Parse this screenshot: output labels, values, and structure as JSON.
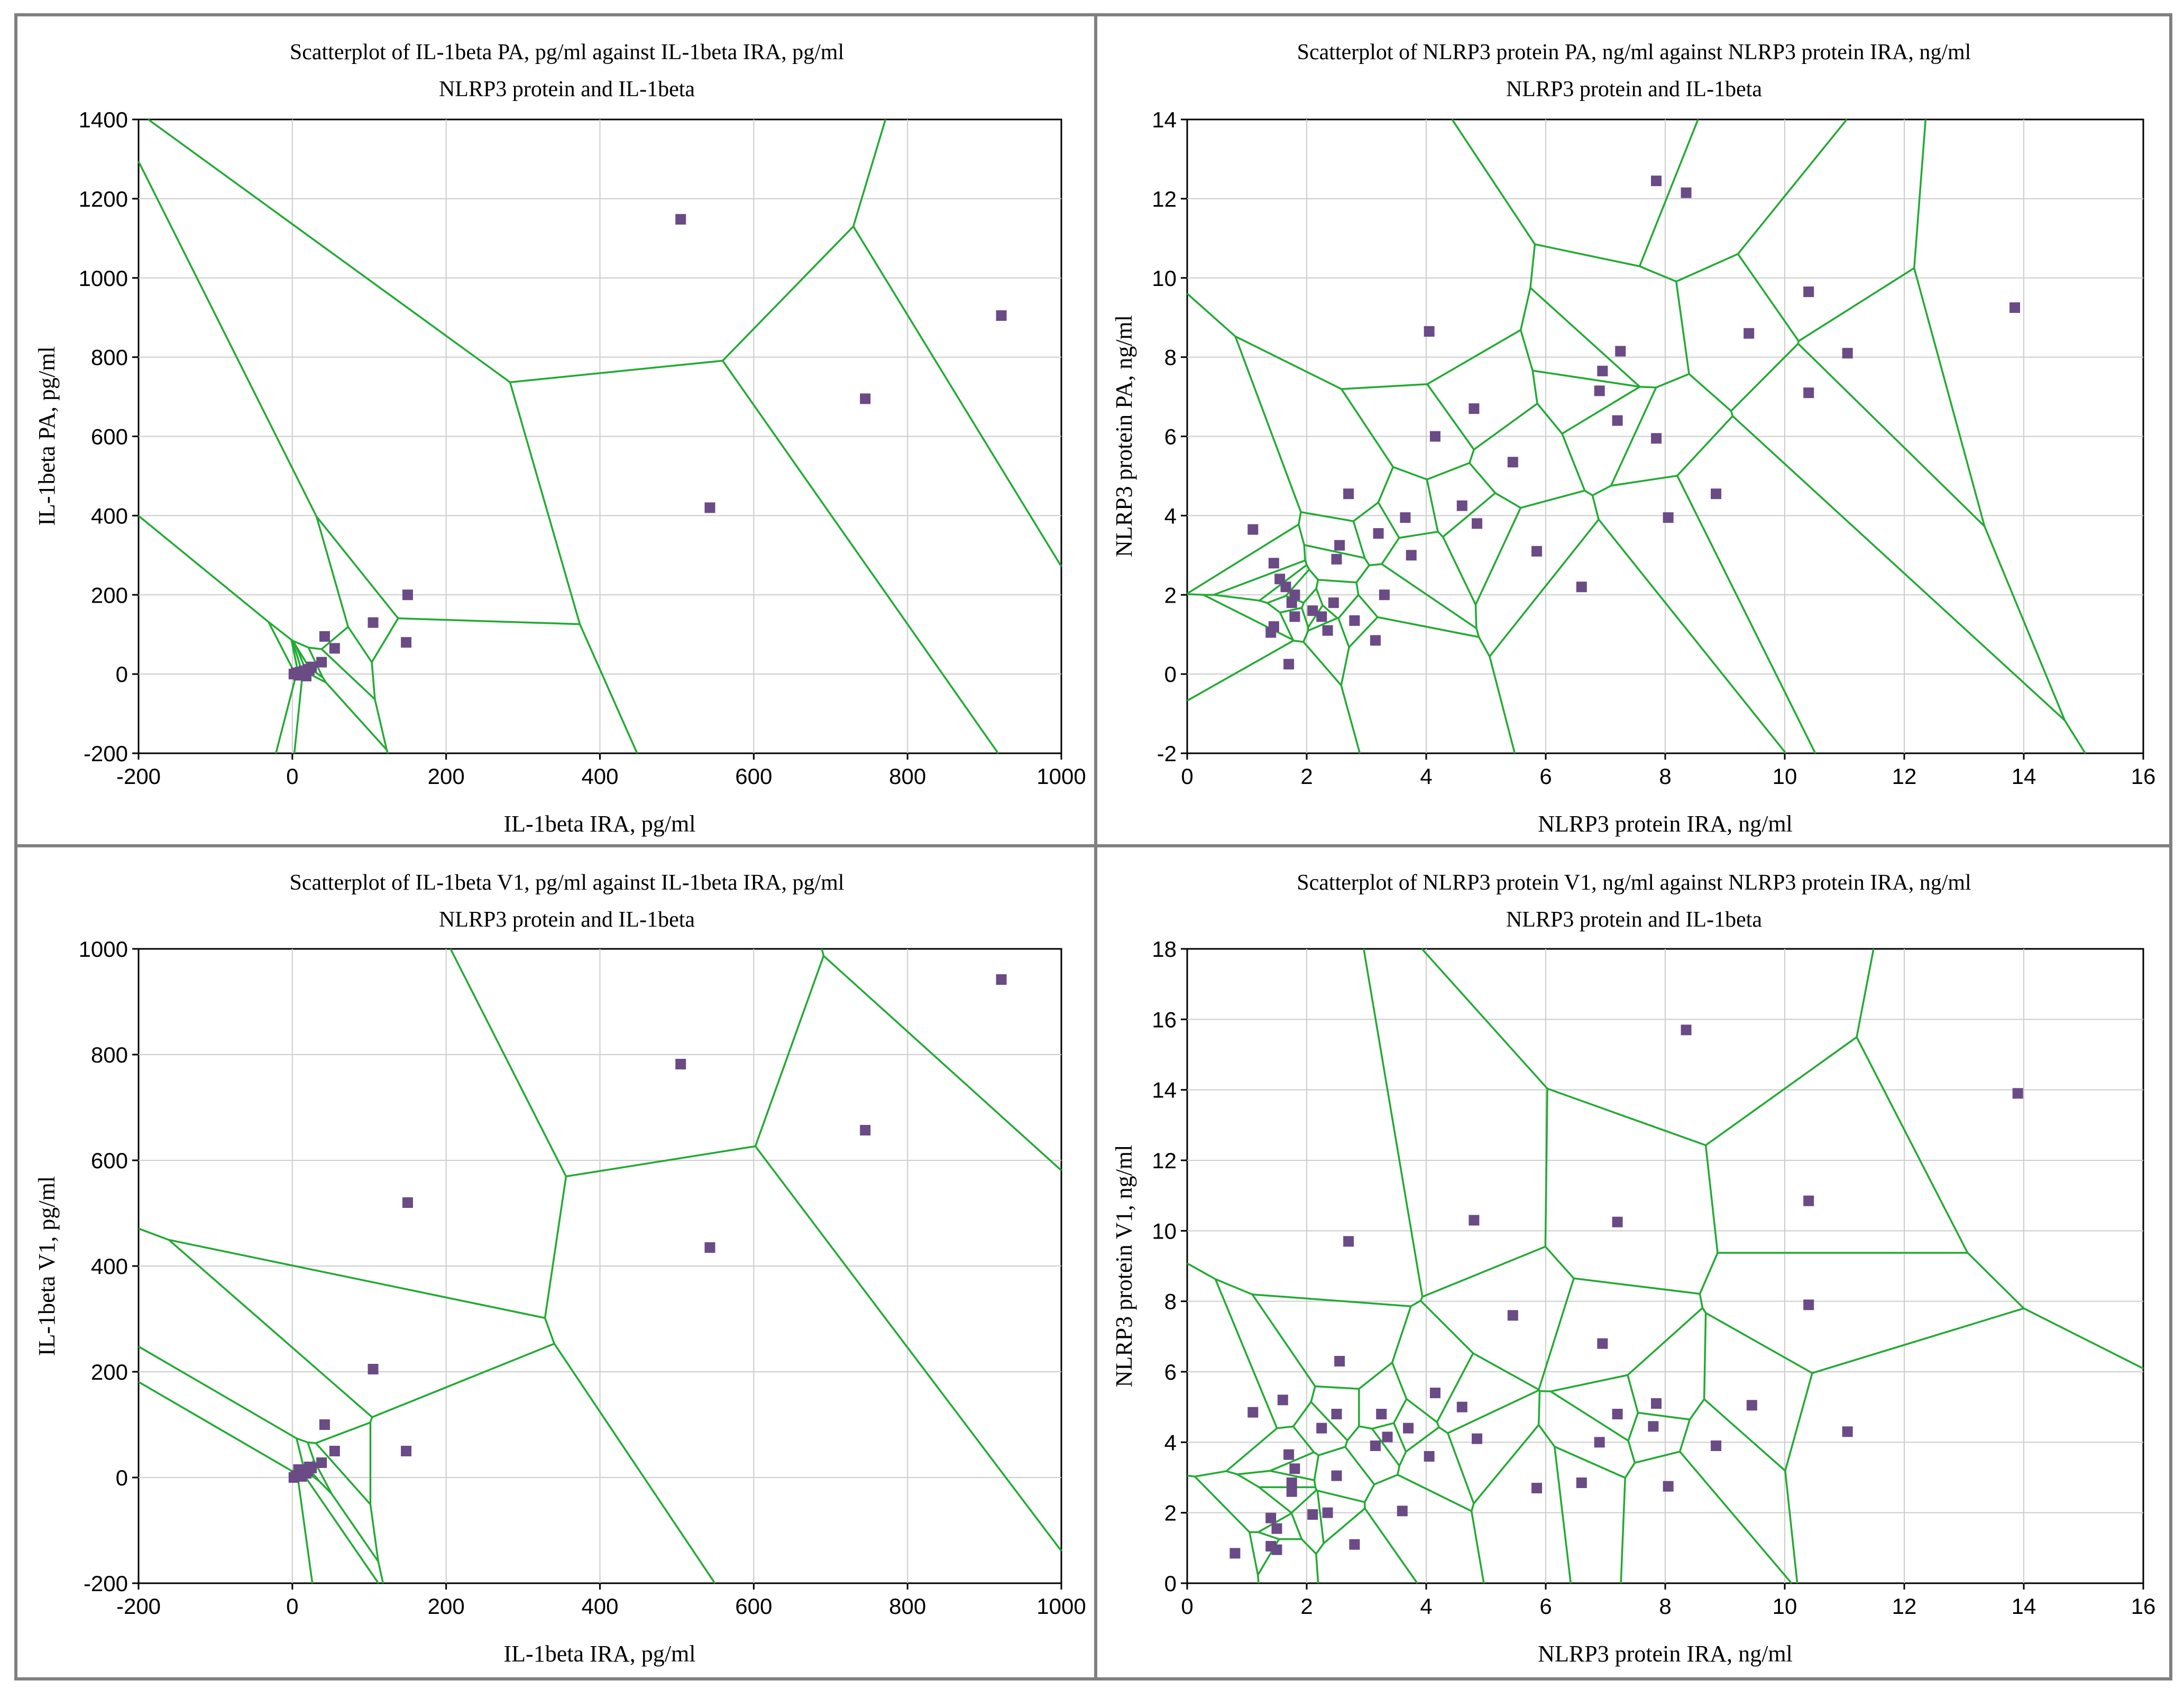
{
  "colors": {
    "points": "#6a4b86",
    "edges": "#22aa33",
    "grid": "#cccccc",
    "frame": "#808080"
  },
  "chart_data": [
    {
      "type": "scatter",
      "title": "Scatterplot of IL-1beta PA, pg/ml against IL-1beta IRA, pg/ml",
      "subtitle": "NLRP3 protein and IL-1beta",
      "xlabel": "IL-1beta IRA, pg/ml",
      "ylabel": "IL-1beta PA, pg/ml",
      "xlim": [
        -200,
        1000
      ],
      "ylim": [
        -200,
        1400
      ],
      "xticks": [
        -200,
        0,
        200,
        400,
        600,
        800,
        1000
      ],
      "yticks": [
        -200,
        0,
        200,
        400,
        600,
        800,
        1000,
        1200,
        1400
      ],
      "grid": true,
      "overlay": "voronoi",
      "points": [
        [
          505,
          1148
        ],
        [
          922,
          905
        ],
        [
          745,
          695
        ],
        [
          543,
          420
        ],
        [
          150,
          200
        ],
        [
          148,
          80
        ],
        [
          105,
          130
        ],
        [
          42,
          95
        ],
        [
          55,
          65
        ],
        [
          38,
          30
        ],
        [
          25,
          18
        ],
        [
          20,
          12
        ],
        [
          15,
          8
        ],
        [
          10,
          5
        ],
        [
          5,
          3
        ],
        [
          2,
          0
        ],
        [
          8,
          -3
        ],
        [
          12,
          2
        ],
        [
          18,
          -5
        ],
        [
          22,
          10
        ]
      ]
    },
    {
      "type": "scatter",
      "title": "Scatterplot of NLRP3 protein PA, ng/ml against NLRP3 protein IRA, ng/ml",
      "subtitle": "NLRP3 protein and IL-1beta",
      "xlabel": "NLRP3 protein IRA, ng/ml",
      "ylabel": "NLRP3 protein PA, ng/ml",
      "xlim": [
        0,
        16
      ],
      "ylim": [
        -2,
        14
      ],
      "xticks": [
        0,
        2,
        4,
        6,
        8,
        10,
        12,
        14,
        16
      ],
      "yticks": [
        -2,
        0,
        2,
        4,
        6,
        8,
        10,
        12,
        14
      ],
      "grid": true,
      "overlay": "voronoi",
      "points": [
        [
          7.85,
          12.45
        ],
        [
          8.35,
          12.15
        ],
        [
          13.85,
          9.25
        ],
        [
          10.4,
          9.65
        ],
        [
          9.4,
          8.6
        ],
        [
          11.05,
          8.1
        ],
        [
          10.4,
          7.1
        ],
        [
          4.05,
          8.65
        ],
        [
          7.25,
          8.15
        ],
        [
          6.95,
          7.65
        ],
        [
          6.9,
          7.15
        ],
        [
          7.2,
          6.4
        ],
        [
          7.85,
          5.95
        ],
        [
          4.8,
          6.7
        ],
        [
          4.15,
          6.0
        ],
        [
          5.45,
          5.35
        ],
        [
          8.85,
          4.55
        ],
        [
          2.7,
          4.55
        ],
        [
          4.6,
          4.25
        ],
        [
          3.65,
          3.95
        ],
        [
          4.85,
          3.8
        ],
        [
          8.05,
          3.95
        ],
        [
          1.1,
          3.65
        ],
        [
          3.2,
          3.55
        ],
        [
          2.55,
          3.25
        ],
        [
          5.85,
          3.1
        ],
        [
          3.75,
          3.0
        ],
        [
          2.5,
          2.9
        ],
        [
          1.45,
          2.8
        ],
        [
          1.55,
          2.4
        ],
        [
          1.65,
          2.2
        ],
        [
          1.8,
          2.0
        ],
        [
          1.75,
          1.8
        ],
        [
          3.3,
          2.0
        ],
        [
          2.45,
          1.8
        ],
        [
          6.6,
          2.2
        ],
        [
          2.1,
          1.6
        ],
        [
          2.25,
          1.45
        ],
        [
          1.8,
          1.45
        ],
        [
          2.8,
          1.35
        ],
        [
          1.45,
          1.2
        ],
        [
          1.4,
          1.05
        ],
        [
          2.35,
          1.1
        ],
        [
          3.15,
          0.85
        ],
        [
          1.7,
          0.25
        ]
      ]
    },
    {
      "type": "scatter",
      "title": "Scatterplot of IL-1beta V1, pg/ml against IL-1beta IRA, pg/ml",
      "subtitle": "NLRP3 protein and IL-1beta",
      "xlabel": "IL-1beta IRA, pg/ml",
      "ylabel": "IL-1beta V1, pg/ml",
      "xlim": [
        -200,
        1000
      ],
      "ylim": [
        -200,
        1000
      ],
      "xticks": [
        -200,
        0,
        200,
        400,
        600,
        800,
        1000
      ],
      "yticks": [
        -200,
        0,
        200,
        400,
        600,
        800,
        1000
      ],
      "grid": true,
      "overlay": "voronoi",
      "points": [
        [
          922,
          942
        ],
        [
          505,
          782
        ],
        [
          745,
          657
        ],
        [
          150,
          520
        ],
        [
          543,
          435
        ],
        [
          105,
          205
        ],
        [
          42,
          100
        ],
        [
          148,
          50
        ],
        [
          55,
          50
        ],
        [
          38,
          28
        ],
        [
          25,
          18
        ],
        [
          20,
          12
        ],
        [
          15,
          10
        ],
        [
          10,
          5
        ],
        [
          5,
          3
        ],
        [
          2,
          0
        ],
        [
          8,
          15
        ],
        [
          12,
          2
        ],
        [
          18,
          8
        ],
        [
          22,
          20
        ]
      ]
    },
    {
      "type": "scatter",
      "title": "Scatterplot of NLRP3 protein V1, ng/ml against NLRP3 protein IRA, ng/ml",
      "subtitle": "NLRP3 protein and IL-1beta",
      "xlabel": "NLRP3 protein IRA, ng/ml",
      "ylabel": "NLRP3 protein V1, ng/ml",
      "xlim": [
        0,
        16
      ],
      "ylim": [
        0,
        18
      ],
      "xticks": [
        0,
        2,
        4,
        6,
        8,
        10,
        12,
        14,
        16
      ],
      "yticks": [
        0,
        2,
        4,
        6,
        8,
        10,
        12,
        14,
        16,
        18
      ],
      "grid": true,
      "overlay": "voronoi",
      "points": [
        [
          8.35,
          15.7
        ],
        [
          13.9,
          13.9
        ],
        [
          10.4,
          10.85
        ],
        [
          4.8,
          10.3
        ],
        [
          7.2,
          10.25
        ],
        [
          2.7,
          9.7
        ],
        [
          10.4,
          7.9
        ],
        [
          5.45,
          7.6
        ],
        [
          6.95,
          6.8
        ],
        [
          2.55,
          6.3
        ],
        [
          4.15,
          5.4
        ],
        [
          1.6,
          5.2
        ],
        [
          7.85,
          5.1
        ],
        [
          9.45,
          5.05
        ],
        [
          4.6,
          5.0
        ],
        [
          1.1,
          4.85
        ],
        [
          3.25,
          4.8
        ],
        [
          2.5,
          4.8
        ],
        [
          7.2,
          4.8
        ],
        [
          7.8,
          4.45
        ],
        [
          11.05,
          4.3
        ],
        [
          2.25,
          4.4
        ],
        [
          3.7,
          4.4
        ],
        [
          3.35,
          4.15
        ],
        [
          4.85,
          4.1
        ],
        [
          3.15,
          3.9
        ],
        [
          6.9,
          4.0
        ],
        [
          8.85,
          3.9
        ],
        [
          1.7,
          3.65
        ],
        [
          4.05,
          3.6
        ],
        [
          1.8,
          3.25
        ],
        [
          2.5,
          3.05
        ],
        [
          1.75,
          2.85
        ],
        [
          6.6,
          2.85
        ],
        [
          1.75,
          2.6
        ],
        [
          5.85,
          2.7
        ],
        [
          8.05,
          2.75
        ],
        [
          3.6,
          2.05
        ],
        [
          2.1,
          1.95
        ],
        [
          2.35,
          2.0
        ],
        [
          1.4,
          1.85
        ],
        [
          1.5,
          1.55
        ],
        [
          2.8,
          1.1
        ],
        [
          1.4,
          1.05
        ],
        [
          1.5,
          0.95
        ],
        [
          0.8,
          0.85
        ]
      ]
    }
  ]
}
